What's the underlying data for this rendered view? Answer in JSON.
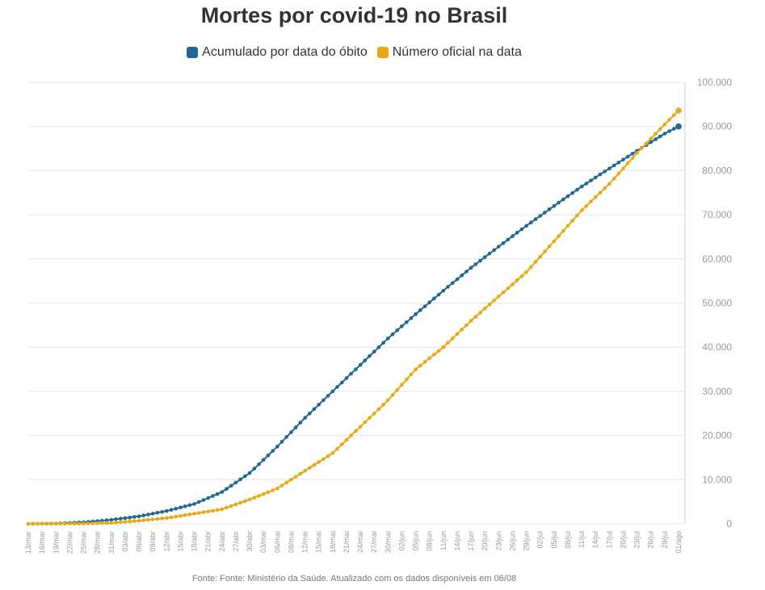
{
  "colors": {
    "accumulated": "#1f6893",
    "official": "#e8aa14",
    "grid": "#e6e6e6",
    "axis_text": "#999999"
  },
  "chart_data": {
    "type": "line",
    "title": "Mortes por covid-19 no Brasil",
    "ylim": [
      0,
      100000
    ],
    "yticks": [
      0,
      10000,
      20000,
      30000,
      40000,
      50000,
      60000,
      70000,
      80000,
      90000,
      100000
    ],
    "ytick_labels": [
      "0",
      "10.000",
      "20.000",
      "30.000",
      "40.000",
      "50.000",
      "60.000",
      "70.000",
      "80.000",
      "90.000",
      "100.000"
    ],
    "x_start": "13/mar",
    "x_end": "01/ago",
    "n_days": 142,
    "xtick_labels": [
      {
        "day": 0,
        "label": "13/mar"
      },
      {
        "day": 3,
        "label": "16/mar"
      },
      {
        "day": 6,
        "label": "19/mar"
      },
      {
        "day": 9,
        "label": "22/mar"
      },
      {
        "day": 12,
        "label": "25/mar"
      },
      {
        "day": 15,
        "label": "28/mar"
      },
      {
        "day": 18,
        "label": "31/mar"
      },
      {
        "day": 21,
        "label": "03/abr"
      },
      {
        "day": 24,
        "label": "06/abr"
      },
      {
        "day": 27,
        "label": "09/abr"
      },
      {
        "day": 30,
        "label": "12/abr"
      },
      {
        "day": 33,
        "label": "15/abr"
      },
      {
        "day": 36,
        "label": "18/abr"
      },
      {
        "day": 39,
        "label": "21/abr"
      },
      {
        "day": 42,
        "label": "24/abr"
      },
      {
        "day": 45,
        "label": "27/abr"
      },
      {
        "day": 48,
        "label": "30/abr"
      },
      {
        "day": 51,
        "label": "03/mai"
      },
      {
        "day": 54,
        "label": "06/mai"
      },
      {
        "day": 57,
        "label": "09/mai"
      },
      {
        "day": 60,
        "label": "12/mai"
      },
      {
        "day": 63,
        "label": "15/mai"
      },
      {
        "day": 66,
        "label": "18/mai"
      },
      {
        "day": 69,
        "label": "21/mai"
      },
      {
        "day": 72,
        "label": "24/mai"
      },
      {
        "day": 75,
        "label": "27/mai"
      },
      {
        "day": 78,
        "label": "30/mai"
      },
      {
        "day": 81,
        "label": "02/jun"
      },
      {
        "day": 84,
        "label": "05/jun"
      },
      {
        "day": 87,
        "label": "08/jun"
      },
      {
        "day": 90,
        "label": "11/jun"
      },
      {
        "day": 93,
        "label": "14/jun"
      },
      {
        "day": 96,
        "label": "17/jun"
      },
      {
        "day": 99,
        "label": "20/jun"
      },
      {
        "day": 102,
        "label": "23/jun"
      },
      {
        "day": 105,
        "label": "26/jun"
      },
      {
        "day": 108,
        "label": "29/jun"
      },
      {
        "day": 111,
        "label": "02/jul"
      },
      {
        "day": 114,
        "label": "05/jul"
      },
      {
        "day": 117,
        "label": "08/jul"
      },
      {
        "day": 120,
        "label": "11/jul"
      },
      {
        "day": 123,
        "label": "14/jul"
      },
      {
        "day": 126,
        "label": "17/jul"
      },
      {
        "day": 129,
        "label": "20/jul"
      },
      {
        "day": 132,
        "label": "23/jul"
      },
      {
        "day": 135,
        "label": "26/jul"
      },
      {
        "day": 138,
        "label": "29/jul"
      },
      {
        "day": 141,
        "label": "01/ago"
      }
    ],
    "legend_position": "top-center",
    "series": [
      {
        "name": "Acumulado por data do óbito",
        "color_key": "accumulated",
        "keypoints": [
          [
            0,
            0
          ],
          [
            6,
            60
          ],
          [
            12,
            350
          ],
          [
            18,
            900
          ],
          [
            24,
            1700
          ],
          [
            30,
            2900
          ],
          [
            36,
            4500
          ],
          [
            42,
            7200
          ],
          [
            48,
            11500
          ],
          [
            54,
            17500
          ],
          [
            60,
            24000
          ],
          [
            66,
            30000
          ],
          [
            72,
            36000
          ],
          [
            78,
            42000
          ],
          [
            84,
            47500
          ],
          [
            90,
            52800
          ],
          [
            96,
            58000
          ],
          [
            102,
            62800
          ],
          [
            108,
            67500
          ],
          [
            114,
            72000
          ],
          [
            120,
            76400
          ],
          [
            126,
            80500
          ],
          [
            132,
            84500
          ],
          [
            138,
            88400
          ],
          [
            141,
            90000
          ]
        ]
      },
      {
        "name": "Número oficial na data",
        "color_key": "official",
        "keypoints": [
          [
            0,
            0
          ],
          [
            6,
            20
          ],
          [
            12,
            70
          ],
          [
            18,
            200
          ],
          [
            24,
            700
          ],
          [
            30,
            1300
          ],
          [
            36,
            2300
          ],
          [
            42,
            3300
          ],
          [
            48,
            5500
          ],
          [
            54,
            8000
          ],
          [
            60,
            12000
          ],
          [
            66,
            16000
          ],
          [
            72,
            22000
          ],
          [
            78,
            28000
          ],
          [
            84,
            35000
          ],
          [
            90,
            40000
          ],
          [
            96,
            46000
          ],
          [
            102,
            51500
          ],
          [
            108,
            57000
          ],
          [
            114,
            64000
          ],
          [
            120,
            71000
          ],
          [
            126,
            77000
          ],
          [
            132,
            84000
          ],
          [
            138,
            90500
          ],
          [
            141,
            93600
          ]
        ]
      }
    ]
  },
  "source_note": "Fonte: Fonte: Ministério da Saúde. Atualizado com os dados disponíveis em 06/08"
}
